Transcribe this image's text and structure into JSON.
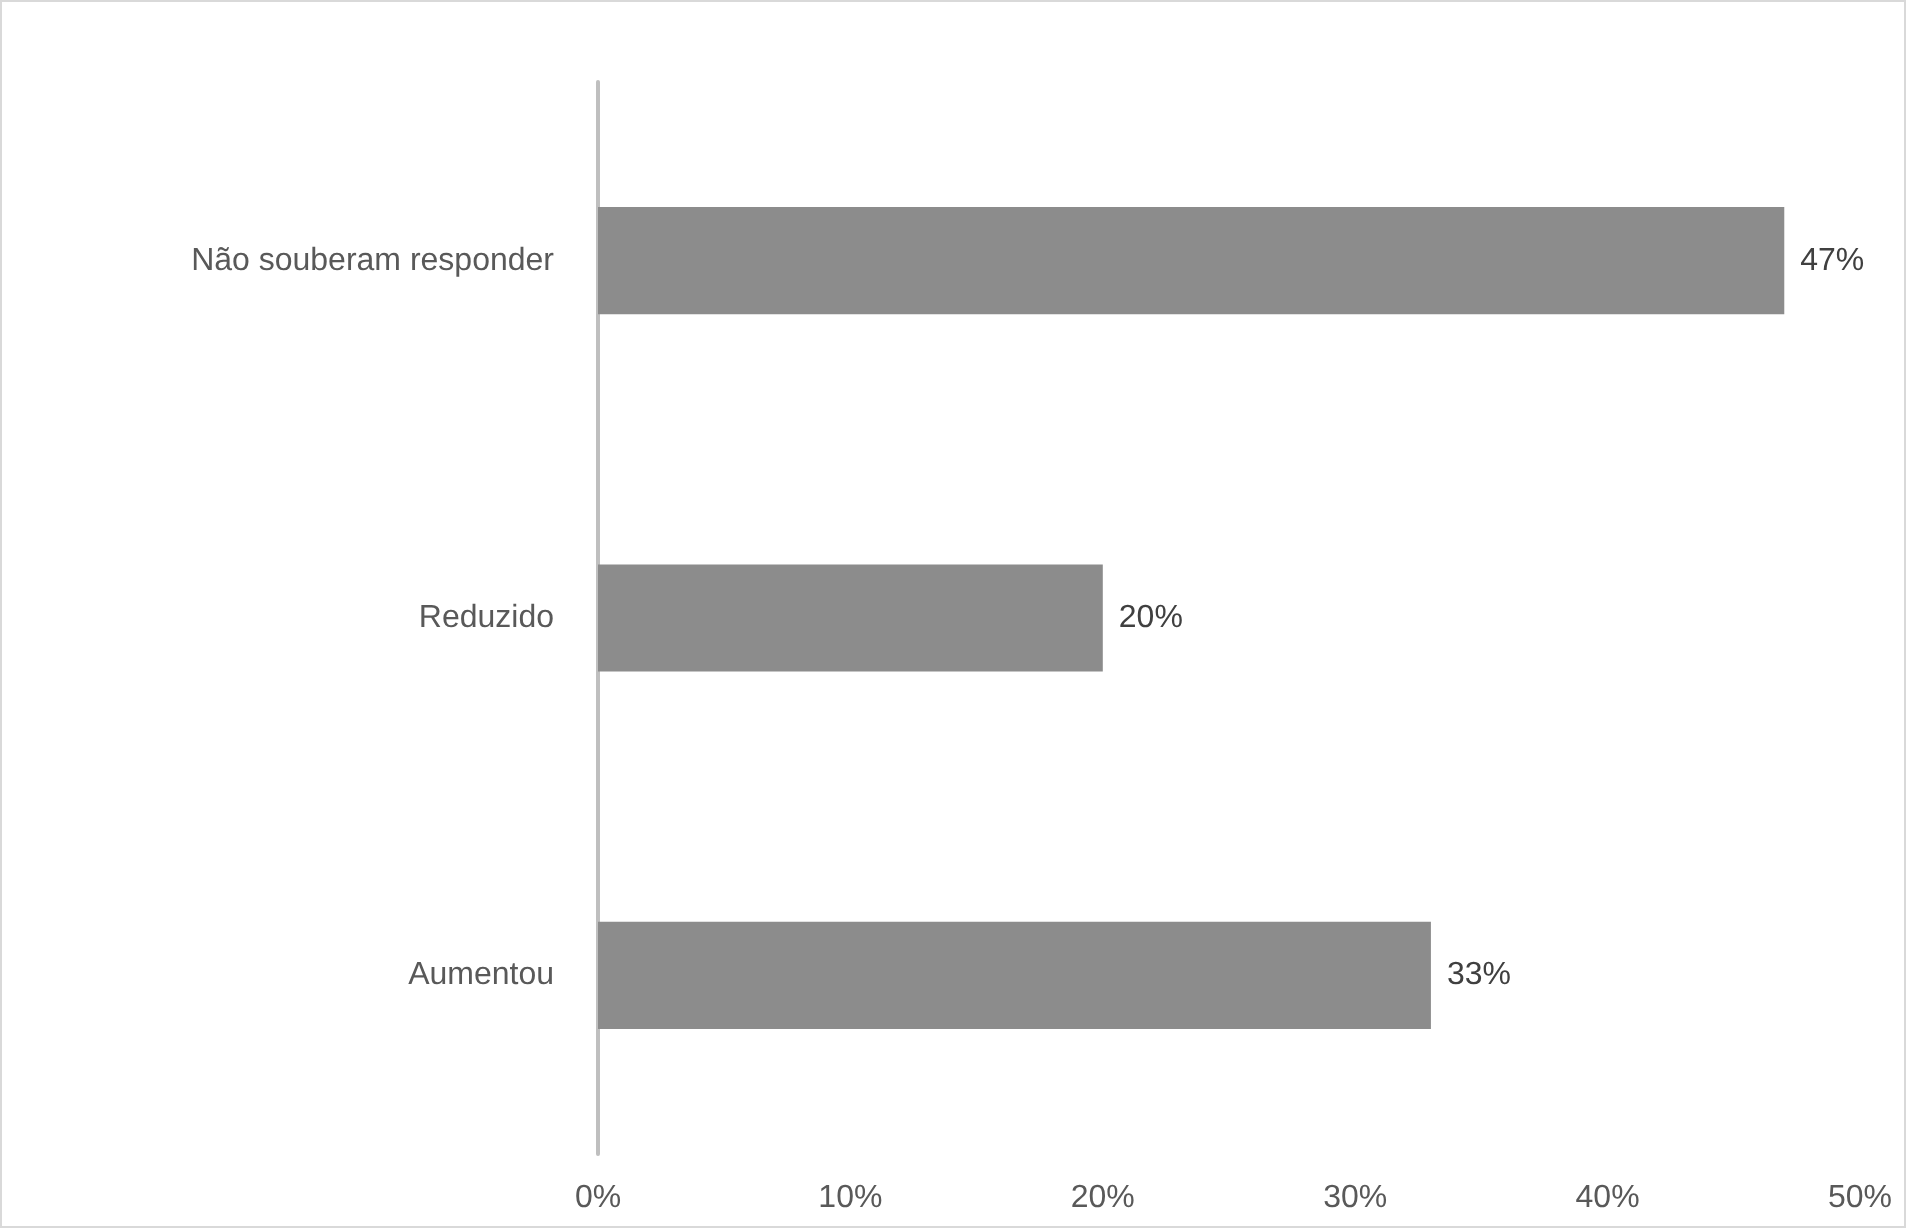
{
  "chart_data": {
    "type": "bar",
    "orientation": "horizontal",
    "categories": [
      "Não souberam responder",
      "Reduzido",
      "Aumentou"
    ],
    "values": [
      47,
      20,
      33
    ],
    "color": "#8c8c8c",
    "value_labels": [
      "47%",
      "20%",
      "33%"
    ],
    "xlim": [
      0,
      50
    ],
    "xticks": [
      {
        "value": 0,
        "label": "0%"
      },
      {
        "value": 10,
        "label": "10%"
      },
      {
        "value": 20,
        "label": "20%"
      },
      {
        "value": 30,
        "label": "30%"
      },
      {
        "value": 40,
        "label": "40%"
      },
      {
        "value": 50,
        "label": "50%"
      }
    ],
    "grid": false
  }
}
